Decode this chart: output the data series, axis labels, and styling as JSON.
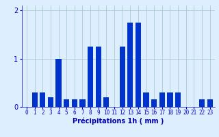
{
  "values": [
    0,
    0.3,
    0.3,
    0.2,
    1.0,
    0.15,
    0.15,
    0.15,
    1.25,
    1.25,
    0.2,
    0,
    1.25,
    1.75,
    1.75,
    0.3,
    0.15,
    0.3,
    0.3,
    0.3,
    0,
    0,
    0.15,
    0.15
  ],
  "bar_color": "#0033cc",
  "background_color": "#ddeeff",
  "grid_color": "#aacccc",
  "xlabel": "Précipitations 1h ( mm )",
  "xlabel_color": "#0000aa",
  "tick_color": "#0000cc",
  "ylim": [
    0,
    2.1
  ],
  "yticks": [
    0,
    1,
    2
  ],
  "figsize": [
    3.2,
    2.0
  ],
  "dpi": 100
}
